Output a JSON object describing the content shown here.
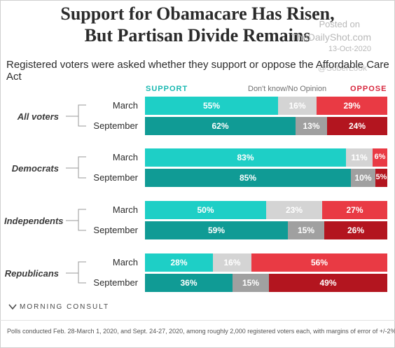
{
  "header": {
    "title_line1": "Support for Obamacare Has Risen,",
    "title_line2": "But Partisan Divide Remains",
    "subtitle": "Registered voters were asked whether they support or oppose the Affordable Care Act"
  },
  "watermark": {
    "posted_on": "Posted on",
    "site": "TheDailyShot.com",
    "date": "13-Oct-2020",
    "handle": "@SoberLook"
  },
  "legend": {
    "support": "SUPPORT",
    "dont_know": "Don't know/No Opinion",
    "oppose": "OPPOSE"
  },
  "colors": {
    "support_march": "#1ecfc6",
    "support_september": "#109b95",
    "dk_march": "#d4d4d4",
    "dk_september": "#a0a0a0",
    "oppose_march": "#e93a44",
    "oppose_september": "#b3151f"
  },
  "chart_data": {
    "type": "bar",
    "orientation": "horizontal",
    "stacked": true,
    "unit": "%",
    "groups": [
      {
        "name": "All voters",
        "rows": [
          {
            "label": "March",
            "support": 55,
            "dont_know": 16,
            "oppose": 29
          },
          {
            "label": "September",
            "support": 62,
            "dont_know": 13,
            "oppose": 24
          }
        ]
      },
      {
        "name": "Democrats",
        "rows": [
          {
            "label": "March",
            "support": 83,
            "dont_know": 11,
            "oppose": 6
          },
          {
            "label": "September",
            "support": 85,
            "dont_know": 10,
            "oppose": 5
          }
        ]
      },
      {
        "name": "Independents",
        "rows": [
          {
            "label": "March",
            "support": 50,
            "dont_know": 23,
            "oppose": 27
          },
          {
            "label": "September",
            "support": 59,
            "dont_know": 15,
            "oppose": 26
          }
        ]
      },
      {
        "name": "Republicans",
        "rows": [
          {
            "label": "March",
            "support": 28,
            "dont_know": 16,
            "oppose": 56
          },
          {
            "label": "September",
            "support": 36,
            "dont_know": 15,
            "oppose": 49
          }
        ]
      }
    ]
  },
  "footer": {
    "logo": "MORNING CONSULT",
    "note": "Polls conducted Feb. 28-March 1, 2020, and Sept. 24-27, 2020, among roughly 2,000 registered voters each, with margins of error of +/-2%."
  }
}
